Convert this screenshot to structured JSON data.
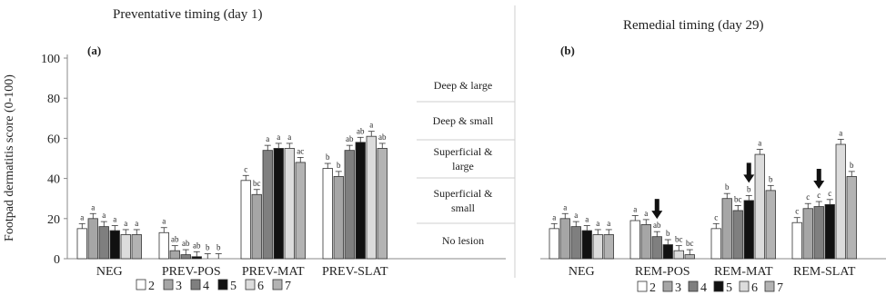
{
  "y_axis_label": "Footpad dermatitis score (0-100)",
  "severity_scale": [
    "Deep & large",
    "Deep & small",
    "Superficial & large",
    "Superficial & small",
    "No lesion"
  ],
  "chart_data": [
    {
      "type": "bar",
      "title": "Preventative timing (day 1)",
      "panel_label": "(a)",
      "ylim": [
        0,
        100
      ],
      "yticks": [
        0,
        20,
        40,
        60,
        80,
        100
      ],
      "categories": [
        "NEG",
        "PREV-POS",
        "PREV-MAT",
        "PREV-SLAT"
      ],
      "legend": [
        "2",
        "3",
        "4",
        "5",
        "6",
        "7"
      ],
      "legend_position": "bottom",
      "series": [
        {
          "name": "2",
          "color": "#ffffff",
          "values": [
            15,
            13,
            39,
            45
          ],
          "errors": [
            2.5,
            2.5,
            2.5,
            2.5
          ],
          "labels": [
            "a",
            "a",
            "c",
            "b"
          ]
        },
        {
          "name": "3",
          "color": "#a6a6a6",
          "values": [
            20,
            4,
            32,
            41
          ],
          "errors": [
            2.5,
            2.5,
            2.5,
            2.5
          ],
          "labels": [
            "a",
            "ab",
            "bc",
            "b"
          ]
        },
        {
          "name": "4",
          "color": "#7f7f7f",
          "values": [
            16,
            2,
            54,
            54
          ],
          "errors": [
            2.5,
            2.5,
            2.5,
            2.5
          ],
          "labels": [
            "a",
            "ab",
            "a",
            "ab"
          ]
        },
        {
          "name": "5",
          "color": "#111111",
          "values": [
            14,
            1,
            55,
            58
          ],
          "errors": [
            2.5,
            2.5,
            2.5,
            2.5
          ],
          "labels": [
            "a",
            "ab",
            "a",
            "ab"
          ]
        },
        {
          "name": "6",
          "color": "#dcdcdc",
          "values": [
            12,
            0,
            55,
            61
          ],
          "errors": [
            2.5,
            2.5,
            2.5,
            2.5
          ],
          "labels": [
            "a",
            "b",
            "a",
            "a"
          ]
        },
        {
          "name": "7",
          "color": "#b3b3b3",
          "values": [
            12,
            0,
            48,
            55
          ],
          "errors": [
            2.5,
            2.5,
            2.5,
            2.5
          ],
          "labels": [
            "a",
            "b",
            "ac",
            "ab"
          ]
        }
      ]
    },
    {
      "type": "bar",
      "title": "Remedial timing (day 29)",
      "panel_label": "(b)",
      "ylim": [
        0,
        100
      ],
      "categories": [
        "NEG",
        "REM-POS",
        "REM-MAT",
        "REM-SLAT"
      ],
      "legend": [
        "2",
        "3",
        "4",
        "5",
        "6",
        "7"
      ],
      "legend_position": "bottom",
      "series": [
        {
          "name": "2",
          "color": "#ffffff",
          "values": [
            15,
            19,
            15,
            18
          ],
          "errors": [
            2.5,
            2.5,
            2.5,
            2.5
          ],
          "labels": [
            "a",
            "a",
            "c",
            "c"
          ]
        },
        {
          "name": "3",
          "color": "#a6a6a6",
          "values": [
            20,
            17,
            30,
            25
          ],
          "errors": [
            2.5,
            2.5,
            2.5,
            2.5
          ],
          "labels": [
            "a",
            "a",
            "b",
            "c"
          ]
        },
        {
          "name": "4",
          "color": "#7f7f7f",
          "values": [
            16,
            11,
            24,
            26
          ],
          "errors": [
            2.5,
            2.5,
            2.5,
            2.5
          ],
          "labels": [
            "a",
            "ab",
            "bc",
            "c"
          ]
        },
        {
          "name": "5",
          "color": "#111111",
          "values": [
            14,
            7,
            29,
            27
          ],
          "errors": [
            2.5,
            2.5,
            2.5,
            2.5
          ],
          "labels": [
            "a",
            "b",
            "b",
            "c"
          ]
        },
        {
          "name": "6",
          "color": "#dcdcdc",
          "values": [
            12,
            4,
            52,
            57
          ],
          "errors": [
            2.5,
            2.5,
            2.5,
            2.5
          ],
          "labels": [
            "a",
            "bc",
            "a",
            "a"
          ]
        },
        {
          "name": "7",
          "color": "#b3b3b3",
          "values": [
            12,
            2,
            34,
            41
          ],
          "errors": [
            2.5,
            2.5,
            2.5,
            2.5
          ],
          "labels": [
            "a",
            "bc",
            "b",
            "b"
          ]
        }
      ],
      "arrows": [
        {
          "category": "REM-POS",
          "series": "4"
        },
        {
          "category": "REM-MAT",
          "series": "5"
        },
        {
          "category": "REM-SLAT",
          "series": "4"
        }
      ]
    }
  ]
}
